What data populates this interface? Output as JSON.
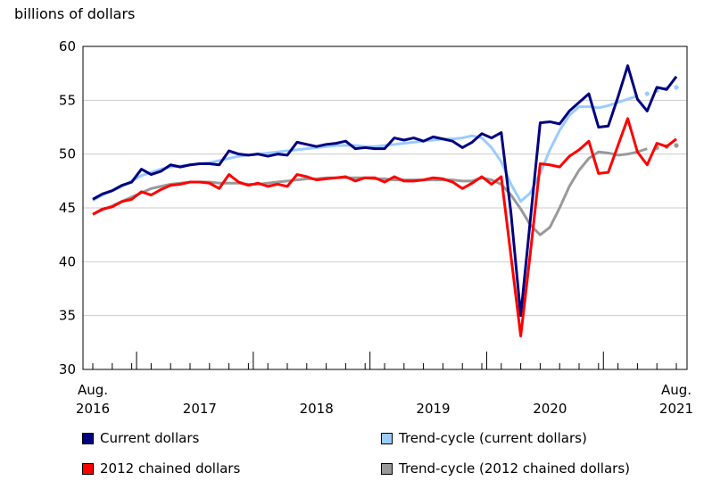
{
  "chart_data": {
    "type": "line",
    "ylabel": "billions of dollars",
    "ylim": [
      30,
      60
    ],
    "yticks": [
      30,
      35,
      40,
      45,
      50,
      55,
      60
    ],
    "x_start": "2016-08",
    "x_end": "2021-08",
    "x_year_labels": [
      {
        "month": "2016-08",
        "text_top": "Aug.",
        "text_bottom": "2016"
      },
      {
        "month": "2017-07",
        "text_top": "",
        "text_bottom": "2017"
      },
      {
        "month": "2018-07",
        "text_top": "",
        "text_bottom": "2018"
      },
      {
        "month": "2019-07",
        "text_top": "",
        "text_bottom": "2019"
      },
      {
        "month": "2020-07",
        "text_top": "",
        "text_bottom": "2020"
      },
      {
        "month": "2021-08",
        "text_top": "Aug.",
        "text_bottom": "2021"
      }
    ],
    "major_ticks": [
      "2017-01",
      "2018-01",
      "2019-01",
      "2020-01",
      "2021-01"
    ],
    "grid": true,
    "legend_position": "bottom",
    "series": [
      {
        "name": "Trend-cycle (current dollars)",
        "color": "#99ccff",
        "style": "solid",
        "values": [
          45.7,
          46.2,
          46.6,
          47.0,
          47.5,
          48.0,
          48.3,
          48.6,
          48.8,
          48.9,
          49.0,
          49.1,
          49.2,
          49.4,
          49.6,
          49.8,
          49.9,
          50.0,
          50.1,
          50.2,
          50.3,
          50.4,
          50.5,
          50.6,
          50.7,
          50.8,
          50.8,
          50.8,
          50.7,
          50.7,
          50.8,
          50.9,
          51.0,
          51.1,
          51.2,
          51.3,
          51.4,
          51.4,
          51.5,
          51.7,
          51.5,
          50.6,
          49.3,
          47.2,
          45.6,
          46.4,
          48.2,
          50.4,
          52.2,
          53.6,
          54.4,
          54.4,
          54.3,
          54.5,
          54.8,
          55.1,
          55.4,
          null,
          null,
          null,
          null
        ],
        "dotted_tail": {
          "start_month": "2021-05",
          "values": [
            55.6,
            55.9,
            56.1,
            56.2
          ]
        }
      },
      {
        "name": "Trend-cycle (2012 chained dollars)",
        "color": "#999999",
        "style": "solid",
        "values": [
          44.4,
          44.8,
          45.2,
          45.6,
          46.0,
          46.4,
          46.8,
          47.0,
          47.2,
          47.3,
          47.4,
          47.4,
          47.4,
          47.3,
          47.3,
          47.3,
          47.2,
          47.2,
          47.3,
          47.4,
          47.5,
          47.6,
          47.7,
          47.7,
          47.8,
          47.8,
          47.8,
          47.8,
          47.8,
          47.7,
          47.7,
          47.6,
          47.6,
          47.6,
          47.6,
          47.6,
          47.6,
          47.6,
          47.5,
          47.5,
          47.8,
          47.6,
          47.2,
          46.2,
          44.9,
          43.4,
          42.5,
          43.2,
          45.0,
          47.0,
          48.5,
          49.6,
          50.2,
          50.1,
          49.9,
          50.0,
          50.2,
          50.5,
          null,
          null,
          null
        ],
        "dotted_tail": {
          "start_month": "2021-06",
          "values": [
            50.6,
            50.7,
            50.8
          ]
        }
      },
      {
        "name": "Current dollars",
        "color": "#000080",
        "style": "solid",
        "values": [
          45.8,
          46.3,
          46.6,
          47.1,
          47.4,
          48.6,
          48.1,
          48.4,
          49.0,
          48.8,
          49.0,
          49.1,
          49.1,
          49.0,
          50.3,
          50.0,
          49.9,
          50.0,
          49.8,
          50.0,
          49.9,
          51.1,
          50.9,
          50.7,
          50.9,
          51.0,
          51.2,
          50.5,
          50.6,
          50.5,
          50.5,
          51.5,
          51.3,
          51.5,
          51.2,
          51.6,
          51.4,
          51.2,
          50.6,
          51.1,
          51.9,
          51.5,
          52.0,
          44.5,
          35.0,
          44.0,
          52.9,
          53.0,
          52.8,
          54.0,
          54.8,
          55.6,
          52.5,
          52.6,
          55.3,
          58.2,
          55.1,
          54.0,
          56.2,
          56.0,
          57.2
        ]
      },
      {
        "name": "2012 chained dollars",
        "color": "#ff0000",
        "style": "solid",
        "values": [
          44.4,
          44.9,
          45.1,
          45.6,
          45.8,
          46.5,
          46.2,
          46.7,
          47.1,
          47.2,
          47.4,
          47.4,
          47.3,
          46.8,
          48.1,
          47.4,
          47.1,
          47.3,
          47.0,
          47.2,
          47.0,
          48.1,
          47.9,
          47.6,
          47.7,
          47.8,
          47.9,
          47.5,
          47.8,
          47.8,
          47.4,
          47.9,
          47.5,
          47.5,
          47.6,
          47.8,
          47.7,
          47.4,
          46.8,
          47.3,
          47.9,
          47.2,
          47.9,
          40.5,
          33.1,
          40.9,
          49.1,
          49.0,
          48.8,
          49.8,
          50.4,
          51.2,
          48.2,
          48.3,
          50.8,
          53.3,
          50.2,
          49.0,
          51.0,
          50.7,
          51.4
        ]
      }
    ],
    "legend": [
      {
        "label": "Current dollars",
        "color": "#000080"
      },
      {
        "label": "Trend-cycle (current dollars)",
        "color": "#99ccff"
      },
      {
        "label": "2012 chained dollars",
        "color": "#ff0000"
      },
      {
        "label": "Trend-cycle (2012 chained dollars)",
        "color": "#999999"
      }
    ]
  }
}
